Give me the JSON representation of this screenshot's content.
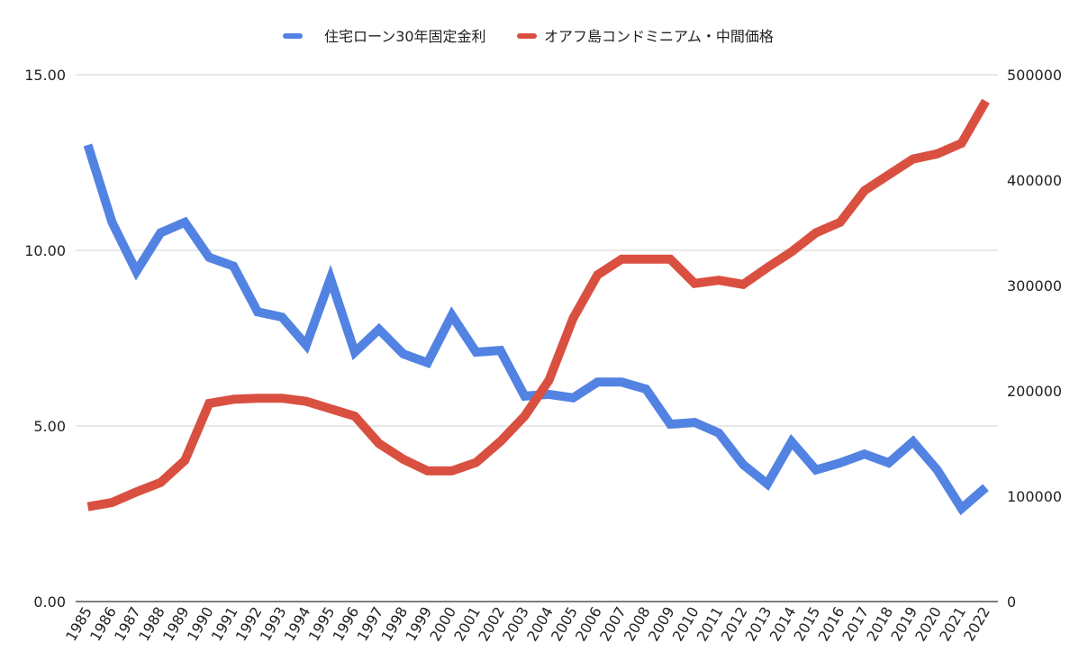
{
  "chart_data": {
    "type": "line",
    "title": "",
    "xlabel": "",
    "ylabel": "",
    "categories": [
      "1985",
      "1986",
      "1987",
      "1988",
      "1989",
      "1990",
      "1991",
      "1992",
      "1993",
      "1994",
      "1995",
      "1996",
      "1997",
      "1998",
      "1999",
      "2000",
      "2001",
      "2002",
      "2003",
      "2004",
      "2005",
      "2006",
      "2007",
      "2008",
      "2009",
      "2010",
      "2011",
      "2012",
      "2013",
      "2014",
      "2015",
      "2016",
      "2017",
      "2018",
      "2019",
      "2020",
      "2021",
      "2022"
    ],
    "y_left": {
      "ylim": [
        0,
        15
      ],
      "ticks": [
        "0.00",
        "5.00",
        "10.00",
        "15.00"
      ],
      "tick_values": [
        0,
        5,
        10,
        15
      ]
    },
    "y_right": {
      "ylim": [
        0,
        500000
      ],
      "ticks": [
        "0",
        "100000",
        "200000",
        "300000",
        "400000",
        "500000"
      ],
      "tick_values": [
        0,
        100000,
        200000,
        300000,
        400000,
        500000
      ]
    },
    "grid": true,
    "legend_position": "top",
    "series": [
      {
        "name": "住宅ローン30年固定金利",
        "axis": "left",
        "color": "#5283e3",
        "values": [
          13.0,
          10.8,
          9.4,
          10.5,
          10.8,
          9.8,
          9.55,
          8.25,
          8.1,
          7.3,
          9.2,
          7.1,
          7.75,
          7.05,
          6.8,
          8.15,
          7.1,
          7.15,
          5.85,
          5.9,
          5.8,
          6.25,
          6.25,
          6.05,
          5.05,
          5.1,
          4.8,
          3.9,
          3.35,
          4.55,
          3.75,
          3.95,
          4.2,
          3.95,
          4.55,
          3.75,
          2.65,
          3.25
        ]
      },
      {
        "name": "オアフ島コンドミニアム・中間価格",
        "axis": "right",
        "color": "#d95040",
        "values": [
          90000,
          94000,
          104000,
          113000,
          134000,
          188000,
          192000,
          193000,
          193000,
          190000,
          183000,
          176000,
          150000,
          135000,
          124000,
          124000,
          132000,
          152000,
          176000,
          210000,
          269000,
          310000,
          325000,
          325000,
          325000,
          302000,
          305000,
          301000,
          317000,
          332000,
          350000,
          360000,
          390000,
          405000,
          420000,
          425000,
          435000,
          475000
        ]
      }
    ]
  }
}
